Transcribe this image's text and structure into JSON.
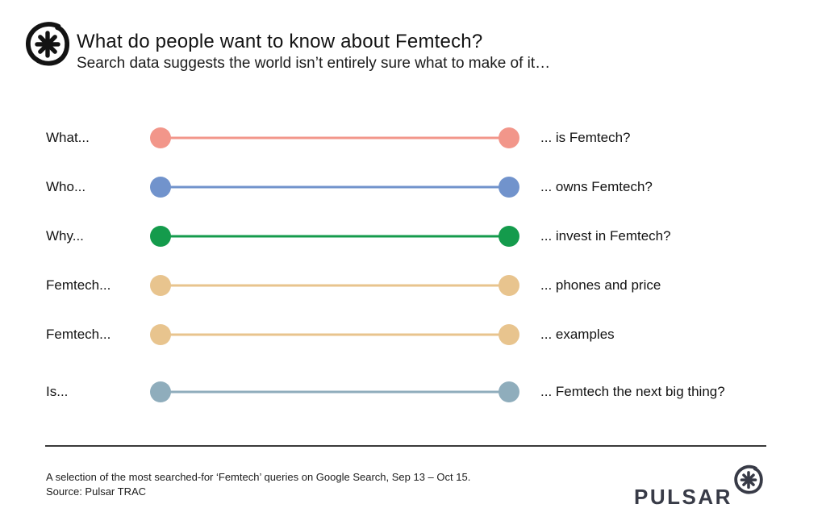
{
  "header": {
    "title": "What do people want to know about Femtech?",
    "subtitle": "Search data suggests the world isn’t entirely sure what to make of it…",
    "logo_icon": "pulsar-asterisk-logo"
  },
  "chart_data": {
    "type": "table",
    "subtype": "dumbbell-query-list",
    "title": "What do people want to know about Femtech?",
    "subtitle": "Search data suggests the world isn’t entirely sure what to make of it…",
    "legend_position": "none",
    "grid": false,
    "rows": [
      {
        "prefix": "What...",
        "suffix": "... is Femtech?",
        "color": "#F2968A"
      },
      {
        "prefix": "Who...",
        "suffix": "... owns Femtech?",
        "color": "#7193CC"
      },
      {
        "prefix": "Why...",
        "suffix": "... invest in Femtech?",
        "color": "#149B4C"
      },
      {
        "prefix": "Femtech...",
        "suffix": "... phones and price",
        "color": "#E8C48E"
      },
      {
        "prefix": "Femtech...",
        "suffix": "... examples",
        "color": "#E8C48E"
      },
      {
        "prefix": "Is...",
        "suffix": "... Femtech the next big thing?",
        "color": "#8FADBC"
      }
    ]
  },
  "footer": {
    "caption": "A selection of the most searched-for ‘Femtech’ queries on Google Search, Sep 13 – Oct 15.",
    "source": "Source: Pulsar TRAC",
    "brand": "PULSAR",
    "brand_color": "#383b47",
    "brand_icon": "pulsar-asterisk-logo"
  }
}
